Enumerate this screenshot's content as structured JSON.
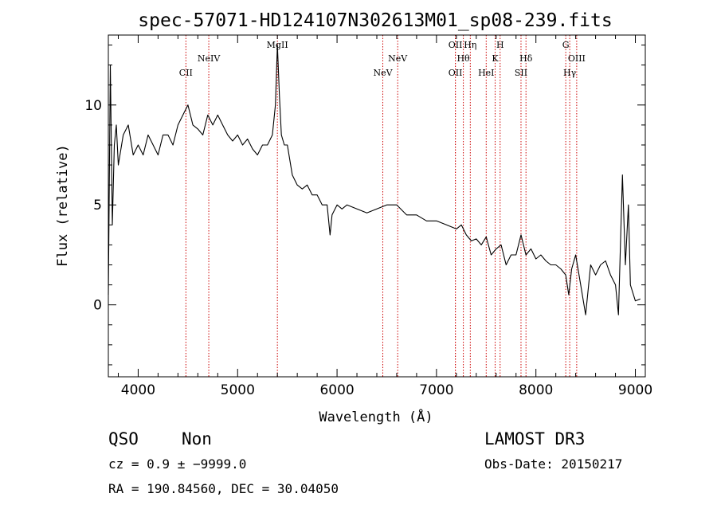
{
  "chart_data": {
    "type": "line",
    "title": "spec-57071-HD124107N302613M01_sp08-239.fits",
    "xlabel": "Wavelength (Å)",
    "ylabel": "Flux (relative)",
    "xlim": [
      3700,
      9100
    ],
    "ylim": [
      -3.6,
      13.5
    ],
    "x_ticks": [
      4000,
      5000,
      6000,
      7000,
      8000,
      9000
    ],
    "y_ticks": [
      0,
      5,
      10
    ],
    "grid": false,
    "legend": "none",
    "spectrum": {
      "color": "#000000",
      "x": [
        3700,
        3720,
        3740,
        3760,
        3780,
        3800,
        3850,
        3900,
        3950,
        4000,
        4050,
        4100,
        4150,
        4200,
        4250,
        4300,
        4350,
        4400,
        4450,
        4500,
        4550,
        4600,
        4650,
        4700,
        4750,
        4800,
        4850,
        4900,
        4950,
        5000,
        5050,
        5100,
        5150,
        5200,
        5250,
        5300,
        5350,
        5380,
        5400,
        5420,
        5440,
        5470,
        5500,
        5550,
        5600,
        5650,
        5700,
        5750,
        5800,
        5850,
        5900,
        5930,
        5950,
        6000,
        6050,
        6100,
        6200,
        6300,
        6400,
        6500,
        6600,
        6700,
        6800,
        6900,
        7000,
        7100,
        7200,
        7250,
        7300,
        7350,
        7400,
        7450,
        7500,
        7550,
        7600,
        7650,
        7700,
        7750,
        7800,
        7850,
        7900,
        7950,
        8000,
        8050,
        8100,
        8150,
        8200,
        8250,
        8300,
        8330,
        8360,
        8400,
        8450,
        8500,
        8550,
        8600,
        8650,
        8700,
        8750,
        8800,
        8830,
        8850,
        8870,
        8900,
        8930,
        8950,
        9000,
        9050
      ],
      "y": [
        0.5,
        12.0,
        4.0,
        8.0,
        9.0,
        7.0,
        8.5,
        9.0,
        7.5,
        8.0,
        7.5,
        8.5,
        8.0,
        7.5,
        8.5,
        8.5,
        8.0,
        9.0,
        9.5,
        10.0,
        9.0,
        8.8,
        8.5,
        9.5,
        9.0,
        9.5,
        9.0,
        8.5,
        8.2,
        8.5,
        8.0,
        8.3,
        7.8,
        7.5,
        8.0,
        8.0,
        8.5,
        10.0,
        13.0,
        10.5,
        8.5,
        8.0,
        8.0,
        6.5,
        6.0,
        5.8,
        6.0,
        5.5,
        5.5,
        5.0,
        5.0,
        3.5,
        4.5,
        5.0,
        4.8,
        5.0,
        4.8,
        4.6,
        4.8,
        5.0,
        5.0,
        4.5,
        4.5,
        4.2,
        4.2,
        4.0,
        3.8,
        4.0,
        3.5,
        3.2,
        3.3,
        3.0,
        3.4,
        2.5,
        2.8,
        3.0,
        2.0,
        2.5,
        2.5,
        3.5,
        2.5,
        2.8,
        2.3,
        2.5,
        2.2,
        2.0,
        2.0,
        1.8,
        1.5,
        0.5,
        1.8,
        2.5,
        1.0,
        -0.5,
        2.0,
        1.5,
        2.0,
        2.2,
        1.5,
        1.0,
        -0.5,
        3.0,
        6.5,
        2.0,
        5.0,
        1.0,
        0.2,
        0.3
      ]
    },
    "lines": [
      {
        "label": "CII",
        "x": 4480,
        "row": 3
      },
      {
        "label": "NeIV",
        "x": 4710,
        "row": 2
      },
      {
        "label": "MgII",
        "x": 5400,
        "row": 1
      },
      {
        "label": "NeV",
        "x": 6460,
        "row": 3
      },
      {
        "label": "NeV",
        "x": 6610,
        "row": 2
      },
      {
        "label": "OII",
        "x": 7190,
        "row": 1
      },
      {
        "label": "OII",
        "x": 7190,
        "row": 3
      },
      {
        "label": "Hθ",
        "x": 7270,
        "row": 2
      },
      {
        "label": "Hη",
        "x": 7340,
        "row": 1
      },
      {
        "label": "HeI",
        "x": 7500,
        "row": 3
      },
      {
        "label": "H",
        "x": 7640,
        "row": 1
      },
      {
        "label": "K",
        "x": 7590,
        "row": 2
      },
      {
        "label": "Hδ",
        "x": 7900,
        "row": 2
      },
      {
        "label": "SII",
        "x": 7850,
        "row": 3
      },
      {
        "label": "G",
        "x": 8300,
        "row": 1
      },
      {
        "label": "OIII",
        "x": 8410,
        "row": 2
      },
      {
        "label": "Hγ",
        "x": 8340,
        "row": 3
      }
    ],
    "line_marker_color": "#cc0000"
  },
  "info": {
    "class": "QSO",
    "subclass": "Non",
    "survey": "LAMOST DR3",
    "cz": "cz = 0.9 ± −9999.0",
    "obs_date": "Obs-Date: 20150217",
    "coords": "RA = 190.84560, DEC =  30.04050"
  }
}
